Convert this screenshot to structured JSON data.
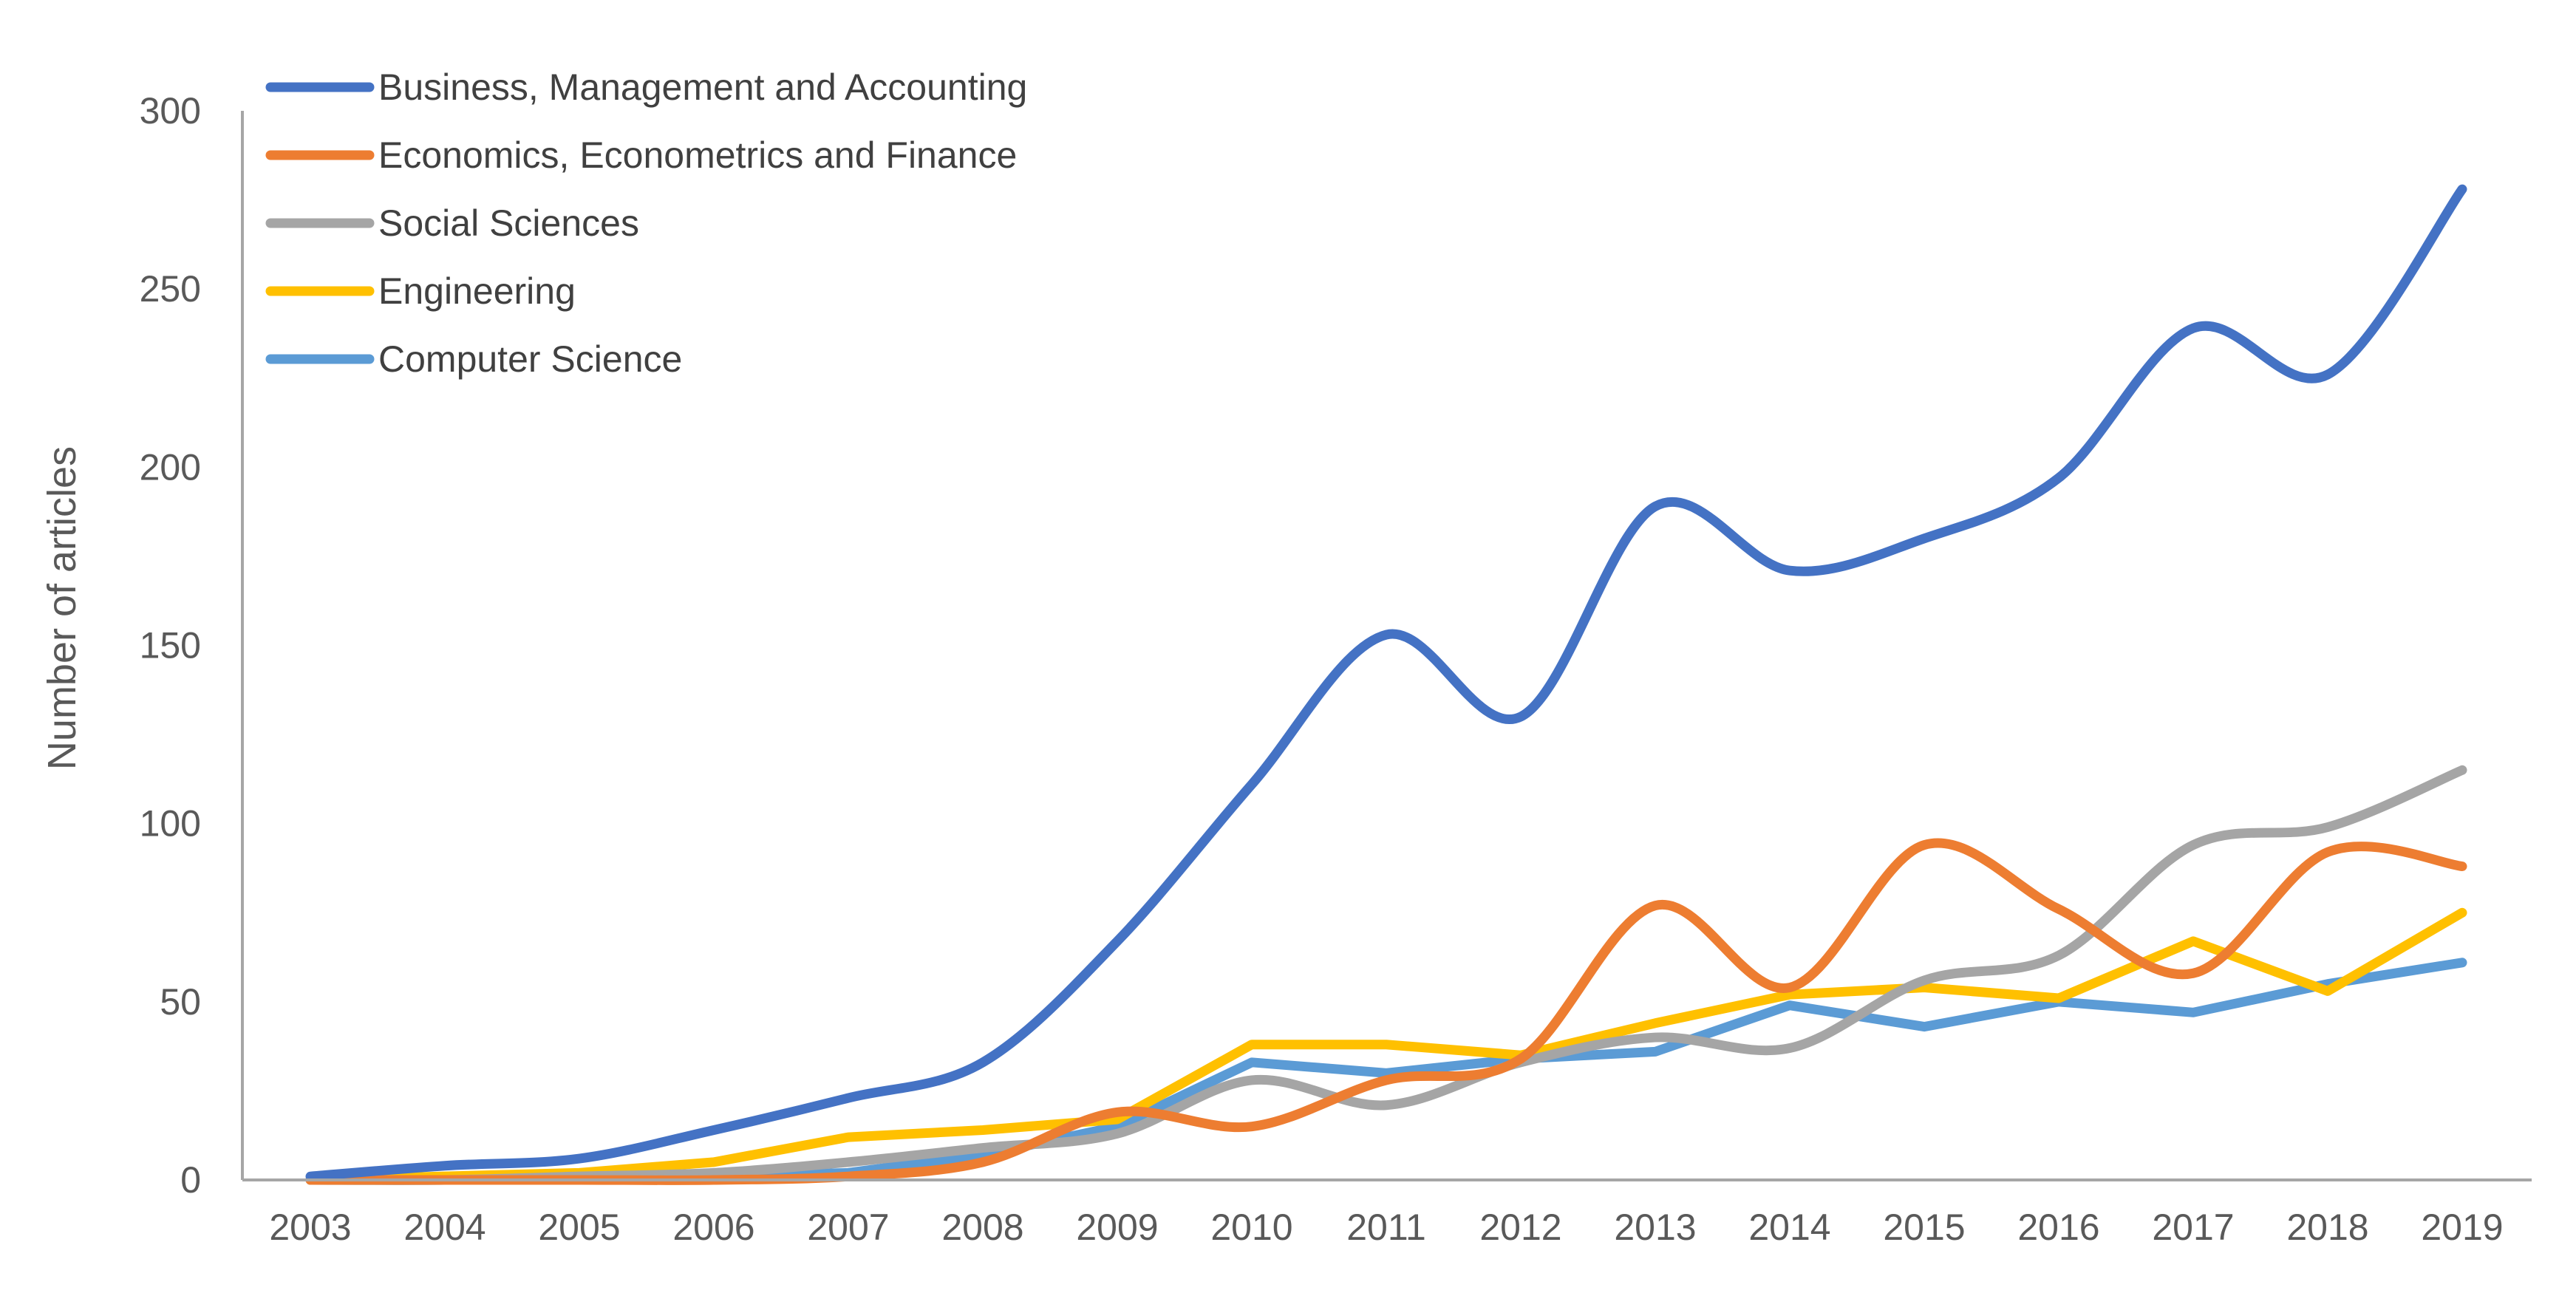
{
  "chart_data": {
    "type": "line",
    "title": "",
    "xlabel": "",
    "ylabel": "Number of articles",
    "ylim": [
      0,
      300
    ],
    "yticks": [
      0,
      50,
      100,
      150,
      200,
      250,
      300
    ],
    "grid": false,
    "legend_position": "top-left",
    "categories": [
      "2003",
      "2004",
      "2005",
      "2006",
      "2007",
      "2008",
      "2009",
      "2010",
      "2011",
      "2012",
      "2013",
      "2014",
      "2015",
      "2016",
      "2017",
      "2018",
      "2019"
    ],
    "series": [
      {
        "name": "Business, Management and Accounting",
        "color": "#4472C4",
        "smooth": true,
        "values": [
          1,
          4,
          6,
          14,
          23,
          33,
          67,
          111,
          153,
          130,
          189,
          171,
          180,
          197,
          239,
          226,
          278
        ]
      },
      {
        "name": "Economics, Econometrics and Finance",
        "color": "#ED7D31",
        "smooth": true,
        "values": [
          0,
          0,
          0,
          0,
          1,
          5,
          19,
          15,
          28,
          34,
          77,
          54,
          94,
          76,
          58,
          92,
          88
        ]
      },
      {
        "name": "Social Sciences",
        "color": "#A5A5A5",
        "smooth": true,
        "values": [
          0,
          0,
          1,
          2,
          5,
          9,
          13,
          28,
          21,
          33,
          40,
          37,
          56,
          63,
          94,
          99,
          115
        ]
      },
      {
        "name": "Engineering",
        "color": "#FFC000",
        "smooth": false,
        "values": [
          0,
          1,
          2,
          5,
          12,
          14,
          17,
          38,
          38,
          35,
          44,
          52,
          54,
          51,
          67,
          53,
          75
        ]
      },
      {
        "name": "Computer Science",
        "color": "#5B9BD5",
        "smooth": false,
        "values": [
          0,
          0,
          0,
          1,
          2,
          7,
          15,
          33,
          30,
          34,
          36,
          49,
          43,
          50,
          47,
          55,
          61
        ]
      }
    ]
  }
}
